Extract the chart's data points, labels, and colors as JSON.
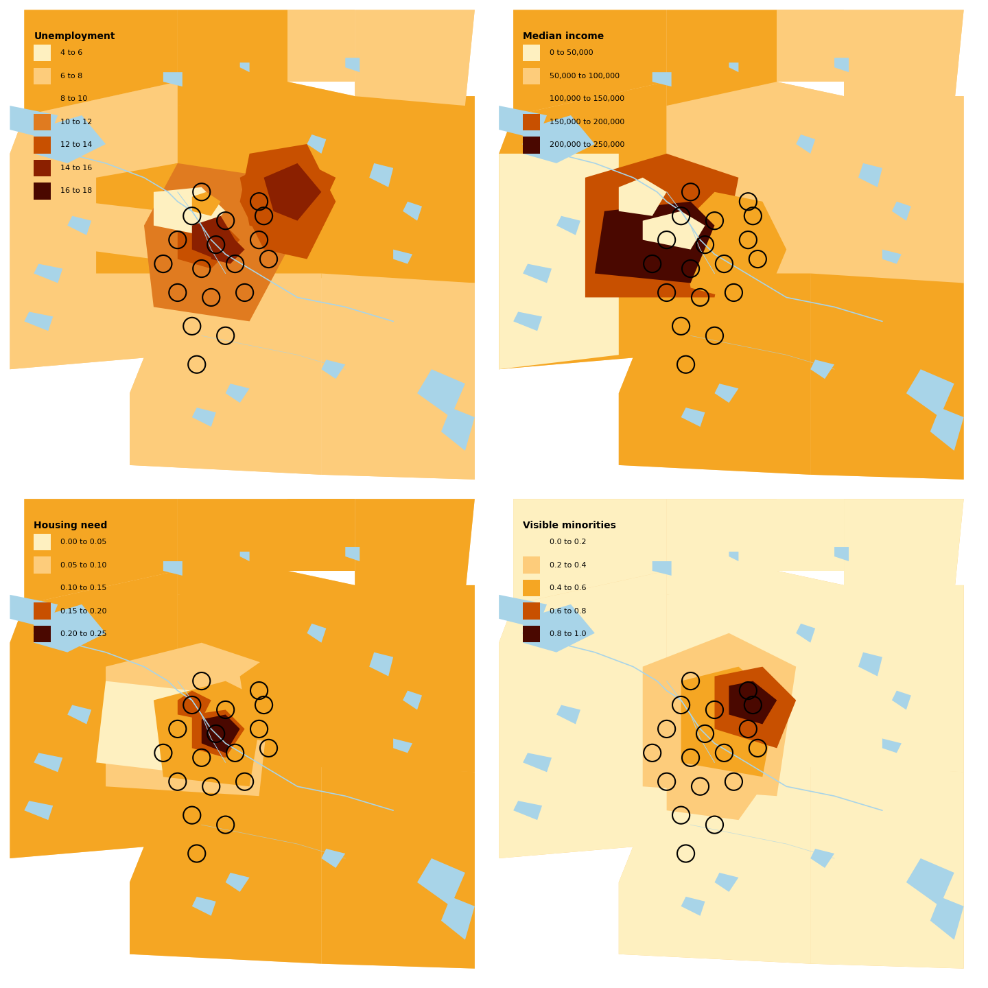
{
  "figure_size": [
    14.4,
    14.4
  ],
  "background_color": "#ffffff",
  "panels": [
    {
      "title": "Unemployment",
      "legend_labels": [
        "4 to 6",
        "6 to 8",
        "8 to 10",
        "10 to 12",
        "12 to 14",
        "14 to 16",
        "16 to 18"
      ],
      "colors": [
        "#FEF0C0",
        "#FDCC7B",
        "#F5A623",
        "#E07B20",
        "#C85000",
        "#8B2000",
        "#4A0800"
      ]
    },
    {
      "title": "Median income",
      "legend_labels": [
        "0 to 50,000",
        "50,000 to 100,000",
        "100,000 to 150,000",
        "150,000 to 200,000",
        "200,000 to 250,000"
      ],
      "colors": [
        "#FEF0C0",
        "#FDCC7B",
        "#F5A623",
        "#C85000",
        "#4A0800"
      ]
    },
    {
      "title": "Housing need",
      "legend_labels": [
        "0.00 to 0.05",
        "0.05 to 0.10",
        "0.10 to 0.15",
        "0.15 to 0.20",
        "0.20 to 0.25"
      ],
      "colors": [
        "#FEF0C0",
        "#FDCC7B",
        "#F5A623",
        "#C85000",
        "#4A0800"
      ]
    },
    {
      "title": "Visible minorities",
      "legend_labels": [
        "0.0 to 0.2",
        "0.2 to 0.4",
        "0.4 to 0.6",
        "0.6 to 0.8",
        "0.8 to 1.0"
      ],
      "colors": [
        "#FEF0C0",
        "#FDCC7B",
        "#F5A623",
        "#C85000",
        "#4A0800"
      ]
    }
  ],
  "water_color": "#A8D4E8",
  "circle_color": "#000000",
  "circle_facecolor": "none",
  "circle_linewidth": 1.5,
  "legend_title_fontsize": 10,
  "legend_label_fontsize": 8
}
